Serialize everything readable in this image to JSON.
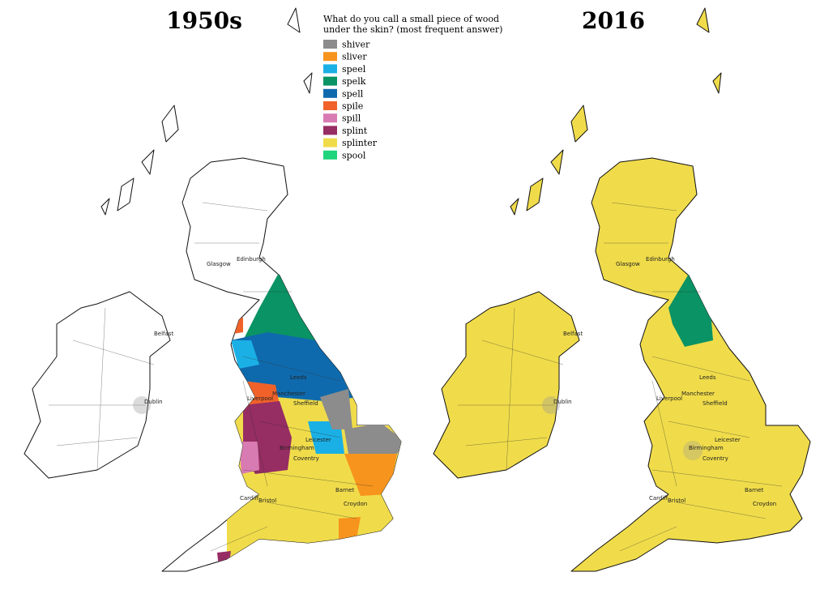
{
  "maps": [
    {
      "title": "1950s"
    },
    {
      "title": "2016"
    }
  ],
  "legend": {
    "title_lines": [
      "What do you call a small piece of wood",
      "under the skin? (most frequent answer)"
    ],
    "items": [
      {
        "name": "shiver",
        "color": "#8c8c8c"
      },
      {
        "name": "sliver",
        "color": "#f7941d"
      },
      {
        "name": "speel",
        "color": "#1ab0e6"
      },
      {
        "name": "spelk",
        "color": "#0a9364"
      },
      {
        "name": "spell",
        "color": "#0f6aad"
      },
      {
        "name": "spile",
        "color": "#f0622a"
      },
      {
        "name": "spill",
        "color": "#d97bb3"
      },
      {
        "name": "splint",
        "color": "#962d63"
      },
      {
        "name": "splinter",
        "color": "#f0dc4a"
      },
      {
        "name": "spool",
        "color": "#1ed47c"
      }
    ]
  },
  "cities": [
    "Glasgow",
    "Edinburgh",
    "Belfast",
    "Dublin",
    "Leeds",
    "Liverpool",
    "Manchester",
    "Sheffield",
    "Leicester",
    "Birmingham",
    "Coventry",
    "Barnet",
    "Cardiff",
    "Bristol",
    "Croydon"
  ]
}
